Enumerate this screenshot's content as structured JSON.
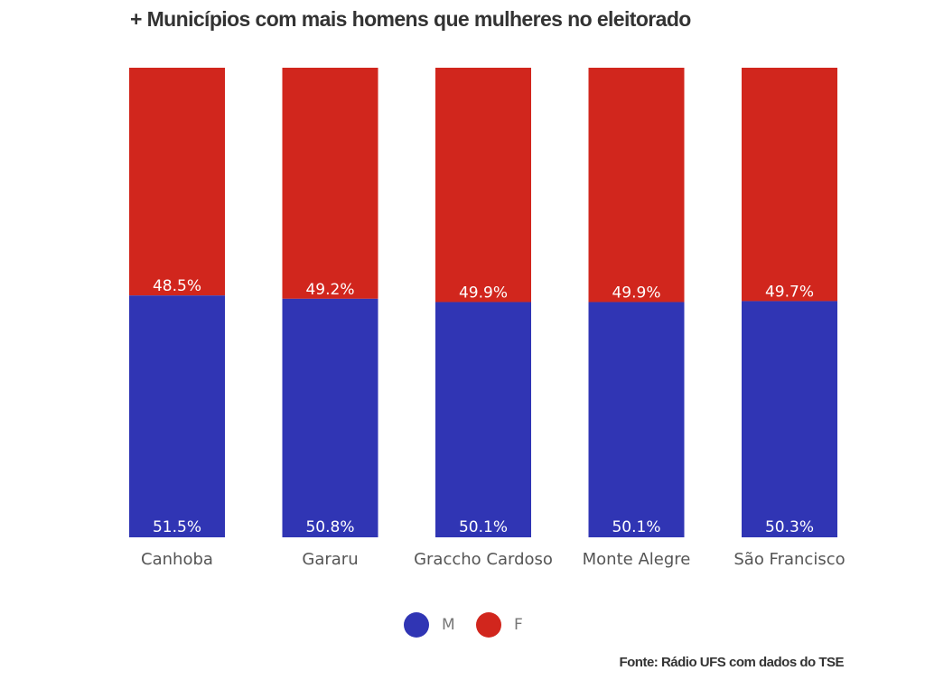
{
  "chart_data": {
    "type": "bar",
    "stacked": true,
    "title": "+ Municípios com mais homens que mulheres no eleitorado",
    "categories": [
      "Canhoba",
      "Gararu",
      "Graccho Cardoso",
      "Monte Alegre",
      "São Francisco"
    ],
    "series": [
      {
        "name": "M",
        "color": "#3035b4",
        "values": [
          51.5,
          50.8,
          50.1,
          50.1,
          50.3
        ],
        "labels": [
          "51.5%",
          "50.8%",
          "50.1%",
          "50.1%",
          "50.3%"
        ]
      },
      {
        "name": "F",
        "color": "#d1261d",
        "values": [
          48.5,
          49.2,
          49.9,
          49.9,
          49.7
        ],
        "labels": [
          "48.5%",
          "49.2%",
          "49.9%",
          "49.9%",
          "49.7%"
        ]
      }
    ],
    "ylim": [
      0,
      100
    ],
    "grid": false,
    "legend_position": "bottom-center"
  },
  "source": "Fonte: Rádio UFS com dados do TSE"
}
